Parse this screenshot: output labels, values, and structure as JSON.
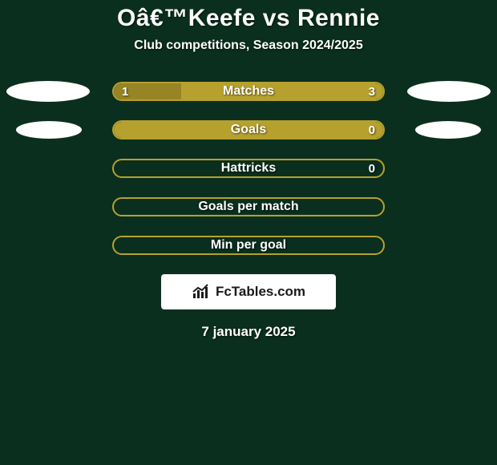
{
  "background_color": "#0a2f1e",
  "title": {
    "text": "Oâ€™Keefe vs Rennie",
    "color": "#ffffff",
    "fontsize": 30
  },
  "subtitle": {
    "text": "Club competitions, Season 2024/2025",
    "color": "#ffffff",
    "fontsize": 16
  },
  "bar_style": {
    "track_width": 340,
    "track_height": 24,
    "label_color": "#ffffff",
    "label_fontsize": 16,
    "value_color": "#ffffff",
    "value_fontsize": 15,
    "fill_color": "#b7a12e",
    "border_color": "#b7a12e",
    "track_bg": "rgba(0,0,0,0)"
  },
  "ellipse_style": {
    "left_color": "#ffffff",
    "right_color": "#ffffff",
    "width": 104,
    "height": 26,
    "small_width": 82,
    "small_height": 22
  },
  "bars": [
    {
      "label": "Matches",
      "left_value": "1",
      "right_value": "3",
      "left_pct": 25,
      "right_pct": 75,
      "show_left_ellipse": true,
      "show_right_ellipse": true,
      "ellipse_size": "large",
      "fill_side": "full_tinted_with_left"
    },
    {
      "label": "Goals",
      "left_value": "",
      "right_value": "0",
      "left_pct": 100,
      "right_pct": 0,
      "show_left_ellipse": true,
      "show_right_ellipse": true,
      "ellipse_size": "small",
      "fill_side": "full"
    },
    {
      "label": "Hattricks",
      "left_value": "",
      "right_value": "0",
      "left_pct": 0,
      "right_pct": 0,
      "show_left_ellipse": false,
      "show_right_ellipse": false,
      "fill_side": "outline"
    },
    {
      "label": "Goals per match",
      "left_value": "",
      "right_value": "",
      "left_pct": 0,
      "right_pct": 0,
      "show_left_ellipse": false,
      "show_right_ellipse": false,
      "fill_side": "outline"
    },
    {
      "label": "Min per goal",
      "left_value": "",
      "right_value": "",
      "left_pct": 0,
      "right_pct": 0,
      "show_left_ellipse": false,
      "show_right_ellipse": false,
      "fill_side": "outline"
    }
  ],
  "badge": {
    "text": "FcTables.com",
    "bg_color": "#ffffff",
    "text_color": "#1a1a1a",
    "icon_color": "#1a1a1a"
  },
  "date": {
    "text": "7 january 2025",
    "color": "#ffffff",
    "fontsize": 17
  }
}
